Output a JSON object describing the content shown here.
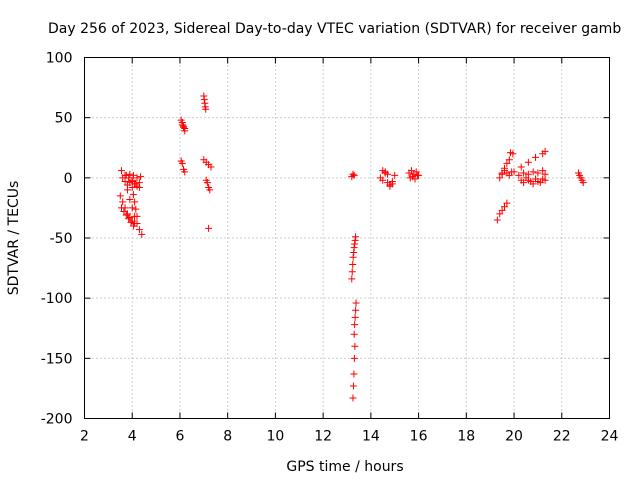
{
  "chart_data": {
    "type": "scatter",
    "title": "Day 256 of 2023, Sidereal Day-to-day VTEC variation (SDTVAR) for receiver gamb",
    "xlabel": "GPS time / hours",
    "ylabel": "SDTVAR / TECUs",
    "xlim": [
      2,
      24
    ],
    "ylim": [
      -200,
      100
    ],
    "xticks": [
      2,
      4,
      6,
      8,
      10,
      12,
      14,
      16,
      18,
      20,
      22,
      24
    ],
    "yticks": [
      100,
      50,
      0,
      -50,
      -100,
      -150,
      -200
    ],
    "xtick_labels": [
      "2",
      "4",
      "6",
      "8",
      "10",
      "12",
      "14",
      "16",
      "18",
      "20",
      "22",
      "24"
    ],
    "ytick_labels": [
      "100",
      "50",
      "0",
      "-50",
      "-100",
      "-150",
      "-200"
    ],
    "grid": true,
    "marker": "+",
    "color": "#ff0000",
    "series": [
      {
        "name": "SDTVAR",
        "segments": [
          {
            "x": [
              3.55,
              3.7,
              3.85,
              4.0,
              4.15,
              4.3
            ],
            "y": [
              6,
              2,
              0,
              -3,
              -5,
              -8
            ]
          },
          {
            "x": [
              3.6,
              3.75,
              3.9,
              4.05,
              4.2,
              4.35
            ],
            "y": [
              0,
              2,
              3,
              2,
              0,
              1
            ]
          },
          {
            "x": [
              3.7,
              3.8,
              3.9,
              4.0,
              4.1,
              4.2,
              4.3
            ],
            "y": [
              -3,
              -6,
              -4,
              -2,
              -5,
              -7,
              -4
            ]
          },
          {
            "x": [
              3.5,
              3.6,
              3.7,
              3.8,
              3.9,
              4.0,
              4.1
            ],
            "y": [
              -15,
              -20,
              -25,
              -30,
              -33,
              -36,
              -38
            ]
          },
          {
            "x": [
              3.55,
              3.65,
              3.75,
              3.85,
              3.95,
              4.05
            ],
            "y": [
              -25,
              -28,
              -31,
              -34,
              -37,
              -40
            ]
          },
          {
            "x": [
              3.8,
              3.9,
              4.0,
              4.1,
              4.2,
              4.3,
              4.4
            ],
            "y": [
              -10,
              -18,
              -25,
              -32,
              -38,
              -43,
              -47
            ]
          },
          {
            "x": [
              4.0,
              4.05,
              4.1,
              4.15,
              4.2
            ],
            "y": [
              -8,
              -14,
              -20,
              -26,
              -32
            ]
          },
          {
            "x": [
              6.05,
              6.1,
              6.15,
              6.2
            ],
            "y": [
              48,
              46,
              42,
              39
            ]
          },
          {
            "x": [
              6.1,
              6.15,
              6.2
            ],
            "y": [
              44,
              43,
              41
            ]
          },
          {
            "x": [
              6.05,
              6.1,
              6.15,
              6.2
            ],
            "y": [
              14,
              12,
              7,
              5
            ]
          },
          {
            "x": [
              7.0,
              7.02,
              7.04,
              7.06,
              7.08
            ],
            "y": [
              68,
              65,
              62,
              59,
              57
            ]
          },
          {
            "x": [
              7.0,
              7.1,
              7.2,
              7.3
            ],
            "y": [
              15,
              13,
              11,
              9
            ]
          },
          {
            "x": [
              7.1,
              7.15,
              7.2,
              7.25
            ],
            "y": [
              -2,
              -4,
              -8,
              -10
            ]
          },
          {
            "x": [
              7.2
            ],
            "y": [
              -42
            ]
          },
          {
            "x": [
              13.2,
              13.25,
              13.3
            ],
            "y": [
              1,
              3,
              2
            ]
          },
          {
            "x": [
              13.2,
              13.22,
              13.24,
              13.26,
              13.28,
              13.3,
              13.32,
              13.34,
              13.36
            ],
            "y": [
              -84,
              -78,
              -72,
              -66,
              -62,
              -58,
              -55,
              -52,
              -49
            ]
          },
          {
            "x": [
              13.25,
              13.27,
              13.29,
              13.31,
              13.33
            ],
            "y": [
              -183,
              -173,
              -163,
              -150,
              -140
            ]
          },
          {
            "x": [
              13.3,
              13.32,
              13.34,
              13.36,
              13.38
            ],
            "y": [
              -130,
              -122,
              -116,
              -110,
              -104
            ]
          },
          {
            "x": [
              14.4,
              14.5,
              14.6,
              14.7,
              14.8,
              14.9,
              15.0
            ],
            "y": [
              0,
              -2,
              5,
              3,
              -6,
              -3,
              2
            ]
          },
          {
            "x": [
              14.5,
              14.6,
              14.7,
              14.8,
              14.9
            ],
            "y": [
              6,
              4,
              -4,
              -7,
              -5
            ]
          },
          {
            "x": [
              15.6,
              15.7,
              15.8,
              15.9,
              16.0
            ],
            "y": [
              4,
              6,
              3,
              5,
              2
            ]
          },
          {
            "x": [
              15.65,
              15.75,
              15.85,
              15.95
            ],
            "y": [
              0,
              1,
              -1,
              2
            ]
          },
          {
            "x": [
              19.3,
              19.4,
              19.5,
              19.6,
              19.7
            ],
            "y": [
              -35,
              -30,
              -27,
              -24,
              -21
            ]
          },
          {
            "x": [
              19.4,
              19.5,
              19.6,
              19.7,
              19.8
            ],
            "y": [
              0,
              4,
              8,
              12,
              15
            ]
          },
          {
            "x": [
              19.5,
              19.6,
              19.7,
              19.8,
              19.9
            ],
            "y": [
              3,
              6,
              4,
              2,
              5
            ]
          },
          {
            "x": [
              19.85,
              19.95
            ],
            "y": [
              21,
              20
            ]
          },
          {
            "x": [
              20.0,
              20.3,
              20.6,
              20.9,
              21.2,
              21.3
            ],
            "y": [
              5,
              9,
              13,
              17,
              20,
              22
            ]
          },
          {
            "x": [
              20.2,
              20.4,
              20.6,
              20.8,
              21.0,
              21.2,
              21.3
            ],
            "y": [
              2,
              4,
              3,
              5,
              4,
              6,
              3
            ]
          },
          {
            "x": [
              20.3,
              20.5,
              20.7,
              20.9,
              21.1,
              21.3
            ],
            "y": [
              -2,
              0,
              -3,
              -1,
              -4,
              -2
            ]
          },
          {
            "x": [
              20.4,
              20.6,
              20.8,
              21.0,
              21.2
            ],
            "y": [
              -4,
              -2,
              -5,
              -3,
              -1
            ]
          },
          {
            "x": [
              22.7,
              22.75,
              22.8,
              22.85,
              22.9
            ],
            "y": [
              4,
              2,
              0,
              -2,
              -4
            ]
          }
        ]
      }
    ]
  }
}
